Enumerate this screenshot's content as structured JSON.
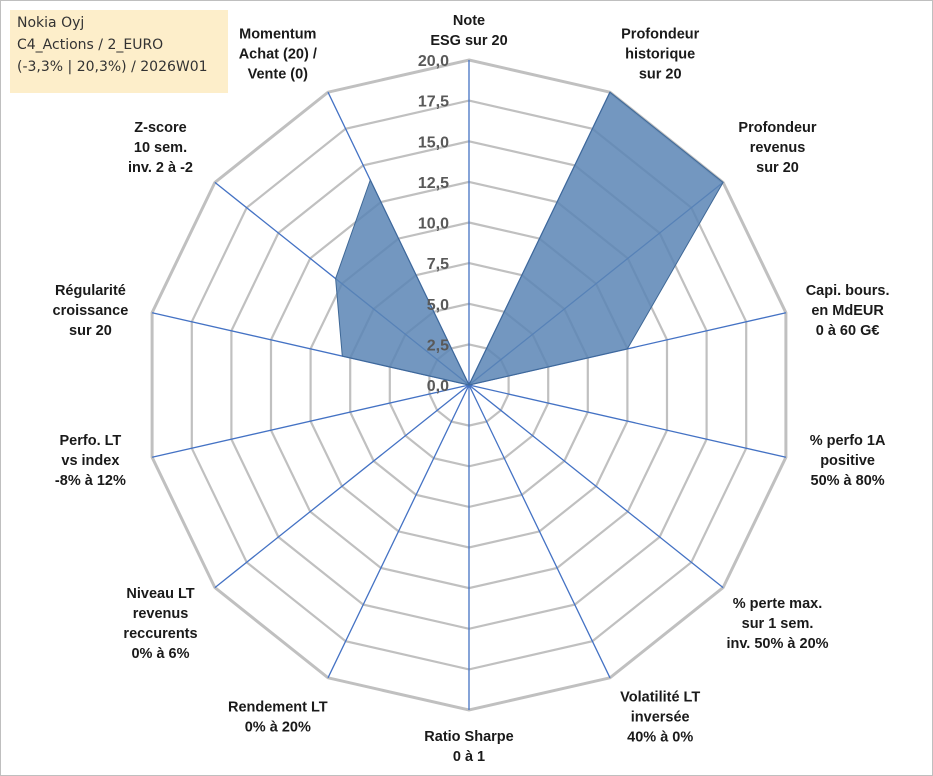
{
  "info_box": {
    "line1": "Nokia Oyj",
    "line2": "C4_Actions / 2_EURO",
    "line3": "(-3,3% | 20,3%) / 2026W01"
  },
  "colors": {
    "grid": "#c0c0c0",
    "spoke": "#4472c4",
    "series_fill": "#5b85b5",
    "series_stroke": "#3f6896",
    "info_bg": "#fdeeca"
  },
  "chart_data": {
    "type": "radar",
    "rmin": 0,
    "rmax": 20,
    "tick_step": 2.5,
    "grid": true,
    "tick_labels": [
      "0,0",
      "2,5",
      "5,0",
      "7,5",
      "10,0",
      "12,5",
      "15,0",
      "17,5",
      "20,0"
    ],
    "axes": [
      [
        "Note",
        "ESG sur 20"
      ],
      [
        "Profondeur",
        "historique",
        "sur 20"
      ],
      [
        "Profondeur",
        "revenus",
        "sur 20"
      ],
      [
        "Capi. bours.",
        "en MdEUR",
        "0 à 60 G€"
      ],
      [
        "% perfo 1A",
        "positive",
        "50% à 80%"
      ],
      [
        "% perte max.",
        "sur 1 sem.",
        "inv. 50% à 20%"
      ],
      [
        "Volatilité LT",
        "inversée",
        "40% à 0%"
      ],
      [
        "Ratio Sharpe",
        "0 à 1"
      ],
      [
        "Rendement LT",
        "0% à 20%"
      ],
      [
        "Niveau LT",
        "revenus",
        "reccurents",
        "0% à 6%"
      ],
      [
        "Perfo. LT",
        "vs index",
        "-8% à 12%"
      ],
      [
        "Régularité",
        "croissance",
        "sur 20"
      ],
      [
        "Z-score",
        "10 sem.",
        "inv. 2 à -2"
      ],
      [
        "Momentum",
        "Achat (20) /",
        "Vente (0)"
      ]
    ],
    "series": [
      {
        "values": [
          0,
          20,
          20,
          10,
          0,
          0,
          0,
          0,
          0,
          0,
          0,
          8,
          10.5,
          14
        ]
      }
    ]
  }
}
